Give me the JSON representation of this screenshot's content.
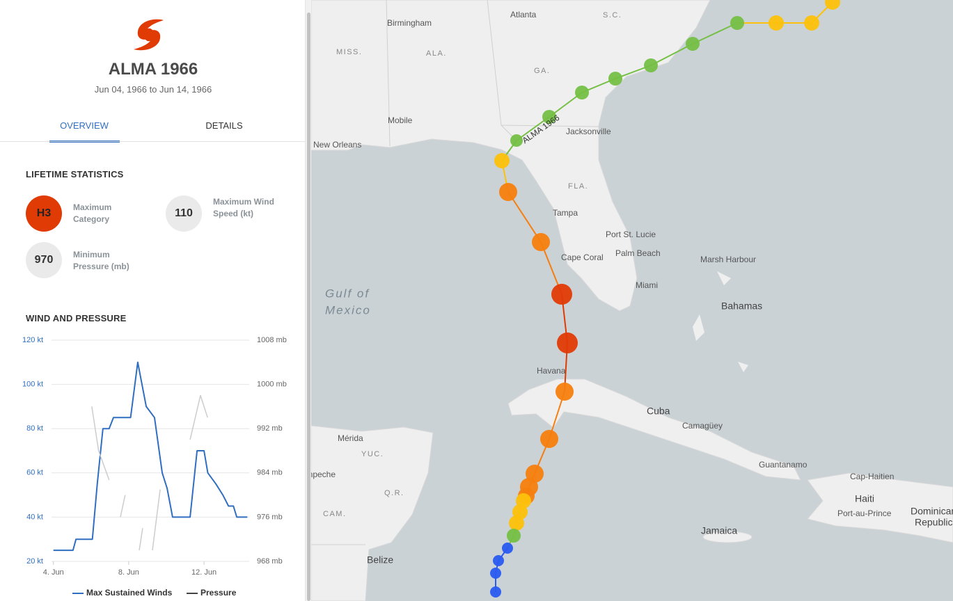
{
  "header": {
    "title": "ALMA 1966",
    "dates": "Jun 04, 1966 to Jun 14, 1966"
  },
  "tabs": [
    "OVERVIEW",
    "DETAILS"
  ],
  "stats": {
    "heading": "LIFETIME STATISTICS",
    "items": [
      {
        "value": "H3",
        "label": "Maximum Category"
      },
      {
        "value": "110",
        "label": "Maximum Wind Speed (kt)"
      },
      {
        "value": "970",
        "label": "Minimum Pressure (mb)"
      }
    ]
  },
  "chart_data": {
    "type": "line",
    "title": "WIND AND PRESSURE",
    "xlim": [
      3.9,
      14.4
    ],
    "xticks": [
      {
        "value": 4,
        "label": "4. Jun"
      },
      {
        "value": 8,
        "label": "8. Jun"
      },
      {
        "value": 12,
        "label": "12. Jun"
      }
    ],
    "ylim": [
      20,
      120
    ],
    "yticks": [
      {
        "value": 20,
        "label": "20 kt"
      },
      {
        "value": 40,
        "label": "40 kt"
      },
      {
        "value": 60,
        "label": "60 kt"
      },
      {
        "value": 80,
        "label": "80 kt"
      },
      {
        "value": 100,
        "label": "100 kt"
      },
      {
        "value": 120,
        "label": "120 kt"
      }
    ],
    "y2lim": [
      968,
      1008
    ],
    "y2ticks": [
      {
        "value": 968,
        "label": "968 mb"
      },
      {
        "value": 976,
        "label": "976 mb"
      },
      {
        "value": 984,
        "label": "984 mb"
      },
      {
        "value": 992,
        "label": "992 mb"
      },
      {
        "value": 1000,
        "label": "1000 mb"
      },
      {
        "value": 1008,
        "label": "1008 mb"
      }
    ],
    "grid": true,
    "series": [
      {
        "name": "Max Sustained Winds",
        "color": "#2f6ec0",
        "x": [
          4.0,
          5.04,
          5.2,
          6.07,
          6.33,
          6.63,
          6.96,
          7.19,
          8.1,
          8.48,
          8.93,
          9.37,
          9.78,
          10.04,
          10.33,
          11.26,
          11.63,
          12.0,
          12.2,
          12.63,
          13.0,
          13.3,
          13.56,
          13.74,
          14.3
        ],
        "values": [
          25,
          25,
          30,
          30,
          55,
          80,
          80,
          85,
          85,
          110,
          90,
          85,
          60,
          53,
          40,
          40,
          70,
          70,
          60,
          55,
          50,
          45,
          45,
          40,
          40
        ]
      },
      {
        "name": "Pressure",
        "color": "#cccccc",
        "axis": "y2",
        "x": [
          6.04,
          6.4,
          6.96,
          7.3,
          7.81,
          7.56,
          7.9,
          8.74,
          8.56,
          8.8,
          9.26,
          9.67,
          10.5,
          11.26,
          11.81,
          12.19
        ],
        "values": [
          996,
          988,
          982.7,
          null,
          980,
          976,
          null,
          974,
          970,
          null,
          970,
          981,
          null,
          990,
          998,
          994
        ]
      }
    ]
  },
  "map": {
    "labels": [
      "Atlanta",
      "Birmingham",
      "S.C.",
      "MISS.",
      "ALA.",
      "GA.",
      "Mobile",
      "Jacksonville",
      "New Orleans",
      "FLA.",
      "Tampa",
      "Port St. Lucie",
      "Palm Beach",
      "Cape Coral",
      "Miami",
      "Marsh Harbour",
      "Gulf of",
      "Mexico",
      "Bahamas",
      "Havana",
      "Cuba",
      "Camagüey",
      "Mérida",
      "YUC.",
      "Campeche",
      "Q.R.",
      "CAM.",
      "Guantanamo",
      "Cap-Haitien",
      "Haiti",
      "Port-au-Prince",
      "Dominican",
      "Republic",
      "Jamaica",
      "Belize"
    ],
    "track_label": "ALMA 1966"
  }
}
